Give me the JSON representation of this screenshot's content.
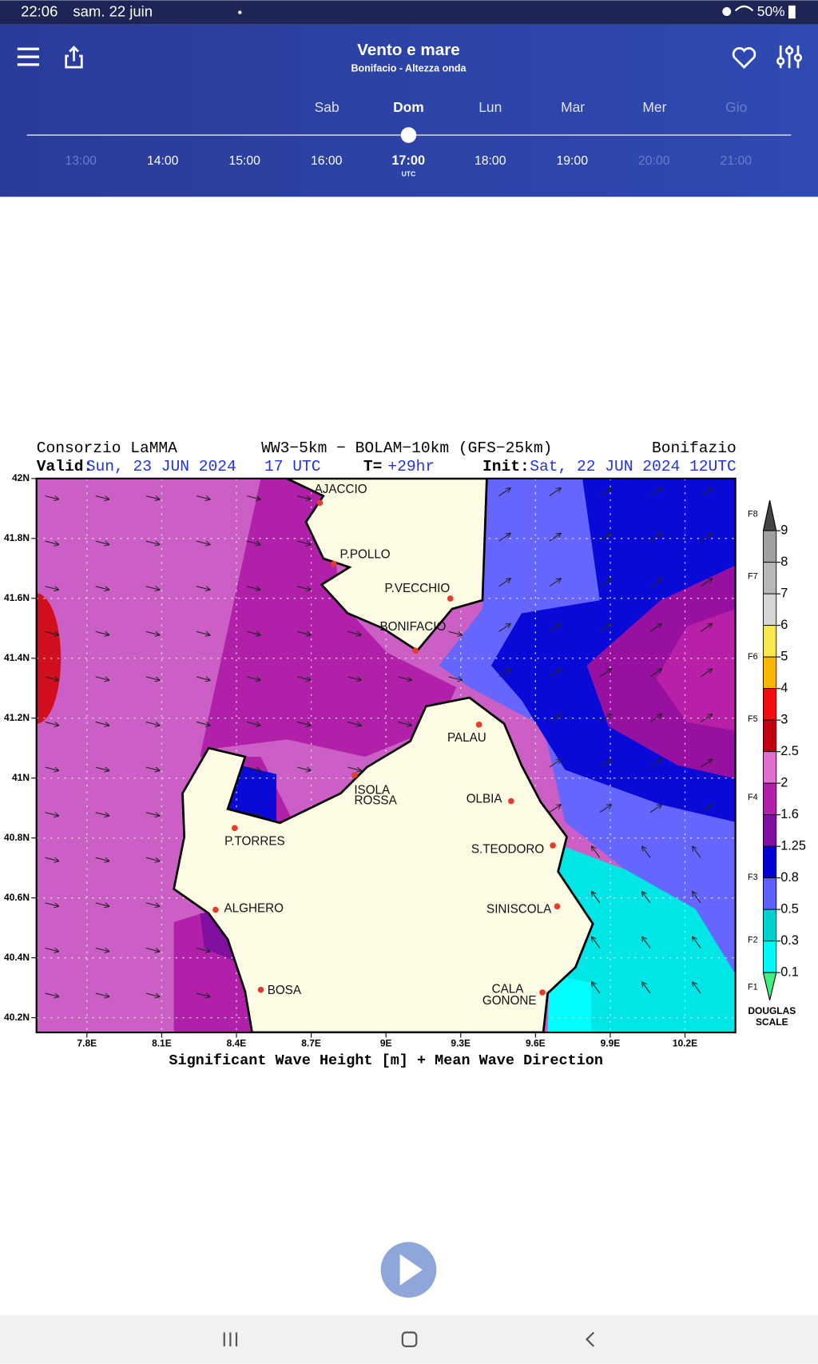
{
  "status_bar": {
    "time": "22:06",
    "date": "sam. 22 juin",
    "battery": "50%"
  },
  "header": {
    "title": "Vento e mare",
    "subtitle": "Bonifacio - Altezza onda",
    "days": [
      "Sab",
      "Dom",
      "Lun",
      "Mar",
      "Mer",
      "Gio"
    ],
    "times": [
      "13:00",
      "14:00",
      "15:00",
      "16:00",
      "17:00",
      "18:00",
      "19:00",
      "20:00",
      "21:00"
    ],
    "selected_time_zone": "UTC"
  },
  "map": {
    "source": "Consorzio LaMMA",
    "models": "WW3−5km − BOLAM−10km (GFS−25km)",
    "area": "Bonifazio",
    "valid_label": "Valid:",
    "valid": "Sun, 23 JUN 2024   17 UTC",
    "t_label": "T=",
    "t_value": "+29hr",
    "init_label": "Init:",
    "init": "Sat, 22 JUN 2024 12UTC",
    "lat_labels": [
      "42N",
      "41.8N",
      "41.6N",
      "41.4N",
      "41.2N",
      "41N",
      "40.8N",
      "40.6N",
      "40.4N",
      "40.2N"
    ],
    "lon_labels": [
      "7.8E",
      "8.1E",
      "8.4E",
      "8.7E",
      "9E",
      "9.3E",
      "9.6E",
      "9.9E",
      "10.2E"
    ],
    "places": [
      "AJACCIO",
      "P.POLLO",
      "P.VECCHIO",
      "BONIFACIO",
      "PALAU",
      "ISOLA",
      "ROSSA",
      "OLBIA",
      "S.TEODORO",
      "P.TORRES",
      "ALGHERO",
      "SINISCOLA",
      "BOSA",
      "CALA",
      "GONONE"
    ],
    "caption": "Significant Wave Height [m] + Mean Wave Direction",
    "legend": {
      "values": [
        "9",
        "8",
        "7",
        "6",
        "5",
        "4",
        "3",
        "2.5",
        "2",
        "1.6",
        "1.25",
        "0.8",
        "0.5",
        "0.3",
        "0.1"
      ],
      "forces": [
        "F8",
        "F7",
        "F6",
        "F5",
        "F4",
        "F3",
        "F2",
        "F1"
      ],
      "title": [
        "DOUGLAS",
        "SCALE"
      ]
    }
  }
}
